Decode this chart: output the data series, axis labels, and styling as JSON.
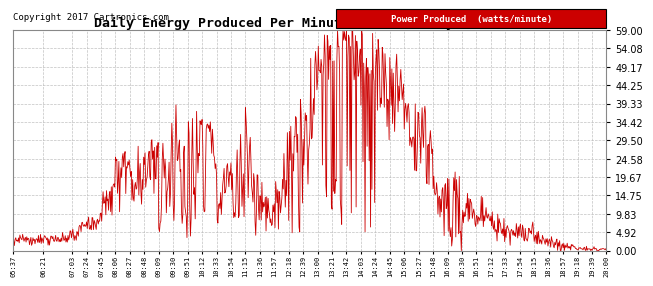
{
  "title": "Daily Energy Produced Per Minute (Wm) Sat May 13 20:06",
  "copyright": "Copyright 2017 Cartronics.com",
  "legend_label": "Power Produced  (watts/minute)",
  "legend_bg": "#cc0000",
  "legend_fg": "#ffffff",
  "line_color": "#cc0000",
  "background_color": "#ffffff",
  "grid_color": "#bbbbbb",
  "yticks": [
    0.0,
    4.92,
    9.83,
    14.75,
    19.67,
    24.58,
    29.5,
    34.42,
    39.33,
    44.25,
    49.17,
    54.08,
    59.0
  ],
  "ymax": 59.0,
  "ymin": 0.0,
  "xtick_labels": [
    "05:37",
    "06:21",
    "07:03",
    "07:24",
    "07:45",
    "08:06",
    "08:27",
    "08:48",
    "09:09",
    "09:30",
    "09:51",
    "10:12",
    "10:33",
    "10:54",
    "11:15",
    "11:36",
    "11:57",
    "12:18",
    "12:39",
    "13:00",
    "13:21",
    "13:42",
    "14:03",
    "14:24",
    "14:45",
    "15:06",
    "15:27",
    "15:48",
    "16:09",
    "16:30",
    "16:51",
    "17:12",
    "17:33",
    "17:54",
    "18:15",
    "18:36",
    "18:57",
    "19:18",
    "19:39",
    "20:00"
  ]
}
